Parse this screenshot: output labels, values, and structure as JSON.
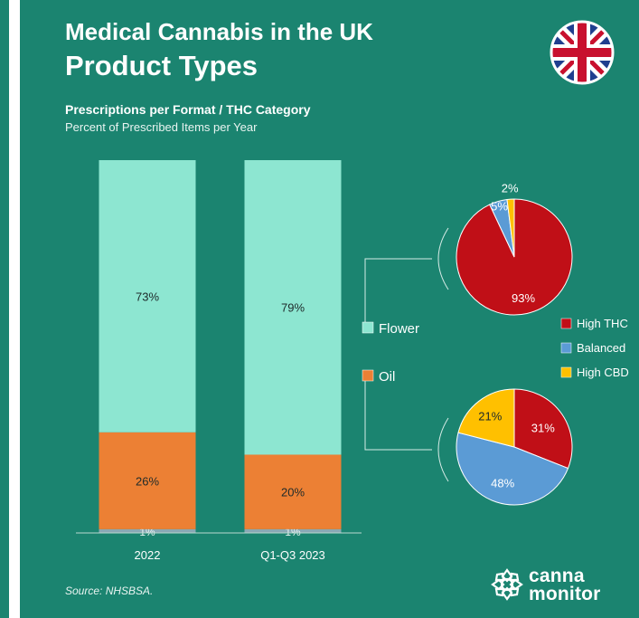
{
  "header": {
    "title_line1": "Medical Cannabis in the UK",
    "title_line2": "Product Types",
    "subtitle": "Prescriptions per Format / THC Category",
    "subsubtitle": "Percent of Prescribed Items per Year"
  },
  "footer": {
    "source": "Source: NHSBSA.",
    "logo_line1": "canna",
    "logo_line2": "monitor"
  },
  "colors": {
    "background": "#1b8470",
    "flower": "#8de6d1",
    "oil": "#ec8034",
    "high_thc": "#c00f17",
    "balanced": "#5b9bd5",
    "high_cbd": "#ffc000"
  },
  "icons": {
    "flag": "uk-flag-icon",
    "logo": "canna-monitor-logo-icon"
  },
  "chart_data": [
    {
      "type": "bar",
      "stacked": true,
      "categories": [
        "2022",
        "Q1-Q3 2023"
      ],
      "series": [
        {
          "name": "",
          "values": [
            1,
            1
          ],
          "labels": [
            "1%",
            "1%"
          ]
        },
        {
          "name": "Oil",
          "values": [
            26,
            20
          ],
          "labels": [
            "26%",
            "20%"
          ]
        },
        {
          "name": "Flower",
          "values": [
            73,
            79
          ],
          "labels": [
            "73%",
            "79%"
          ]
        }
      ],
      "ylim": [
        0,
        100
      ],
      "grid": false,
      "legend_placement": "right"
    },
    {
      "type": "pie",
      "group": "Flower",
      "labels": [
        "High THC",
        "Balanced",
        "High CBD"
      ],
      "values": [
        93,
        5,
        2
      ],
      "value_labels": [
        "93%",
        "5%",
        "2%"
      ]
    },
    {
      "type": "pie",
      "group": "Oil",
      "labels": [
        "High THC",
        "Balanced",
        "High CBD"
      ],
      "values": [
        31,
        48,
        21
      ],
      "value_labels": [
        "31%",
        "48%",
        "21%"
      ]
    }
  ]
}
